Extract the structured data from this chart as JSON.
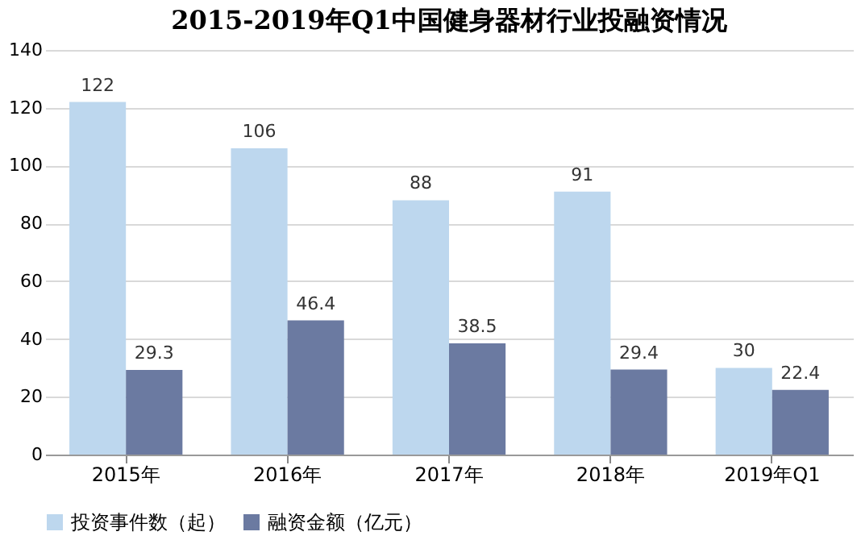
{
  "chart_data": {
    "type": "bar",
    "title": "2015-2019年Q1中国健身器材行业投融资情况",
    "categories": [
      "2015年",
      "2016年",
      "2017年",
      "2018年",
      "2019年Q1"
    ],
    "series": [
      {
        "name": "投资事件数（起）",
        "color": "#bdd7ee",
        "values": [
          122,
          106,
          88,
          91,
          30
        ]
      },
      {
        "name": "融资金额（亿元）",
        "color": "#6b7aa1",
        "values": [
          29.3,
          46.4,
          38.5,
          29.4,
          22.4
        ]
      }
    ],
    "ylim": [
      0,
      140
    ],
    "yticks": [
      0,
      20,
      40,
      60,
      80,
      100,
      120,
      140
    ],
    "grid": "y",
    "legend": "bottom",
    "data_labels": true
  }
}
